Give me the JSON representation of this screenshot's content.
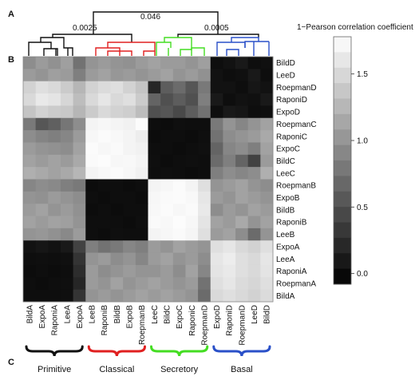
{
  "panel_labels": {
    "a": "A",
    "b": "B",
    "c": "C"
  },
  "dendrogram": {
    "heights": {
      "root": "0.046",
      "left": "0.0025",
      "right": "0.0005"
    },
    "branch_colors": {
      "primitive": "#111111",
      "classical": "#e02020",
      "secretory": "#44dd22",
      "basal": "#2a50c8"
    }
  },
  "colorbar": {
    "title": "1−Pearson correlation coefficient",
    "ticks": [
      "1.5",
      "1.0",
      "0.5",
      "0.0"
    ],
    "tick_values": [
      1.5,
      1.0,
      0.5,
      0.0
    ],
    "range": [
      -0.08,
      1.78
    ]
  },
  "groups": [
    {
      "label": "Primitive",
      "color": "#111111"
    },
    {
      "label": "Classical",
      "color": "#e02020"
    },
    {
      "label": "Secretory",
      "color": "#44dd22"
    },
    {
      "label": "Basal",
      "color": "#2a50c8"
    }
  ],
  "chart_data": {
    "type": "heatmap",
    "x_labels": [
      "BildA",
      "ExpoA",
      "RaponiA",
      "LeeA",
      "ExpoA",
      "LeeB",
      "RaponiB",
      "BildB",
      "ExpoB",
      "RoepmanB",
      "LeeC",
      "BildC",
      "ExpoC",
      "RaponiC",
      "RoepmanD",
      "ExpoD",
      "RaponiD",
      "RoepmanD",
      "LeeD",
      "BildD"
    ],
    "y_labels": [
      "BildD",
      "LeeD",
      "RoepmanD",
      "RaponiD",
      "ExpoD",
      "RoepmanC",
      "RaponiC",
      "ExpoC",
      "BildC",
      "LeeC",
      "RoepmanB",
      "ExpoB",
      "BildB",
      "RaponiB",
      "LeeB",
      "ExpoA",
      "LeeA",
      "RaponiA",
      "RoepmanA",
      "BildA"
    ],
    "values": [
      [
        0.95,
        1.05,
        0.98,
        1.08,
        0.75,
        1.0,
        1.05,
        1.0,
        0.98,
        1.05,
        1.1,
        1.05,
        1.05,
        1.0,
        1.08,
        0.02,
        0.05,
        0.1,
        0.02,
        0.04
      ],
      [
        1.05,
        1.0,
        1.08,
        1.05,
        0.85,
        1.05,
        1.1,
        1.02,
        1.05,
        1.0,
        1.05,
        1.1,
        1.0,
        1.05,
        0.98,
        0.05,
        0.02,
        0.04,
        0.1,
        0.02
      ],
      [
        1.45,
        1.55,
        1.5,
        1.4,
        1.25,
        1.45,
        1.52,
        1.55,
        1.45,
        1.35,
        0.2,
        0.6,
        0.7,
        0.55,
        0.8,
        0.05,
        0.05,
        0.02,
        0.08,
        0.05
      ],
      [
        1.5,
        1.62,
        1.58,
        1.48,
        1.3,
        1.5,
        1.6,
        1.5,
        1.55,
        1.4,
        0.65,
        0.5,
        0.6,
        0.5,
        0.85,
        0.1,
        0.02,
        0.05,
        0.04,
        0.1
      ],
      [
        1.35,
        1.45,
        1.4,
        1.38,
        1.25,
        1.4,
        1.5,
        1.45,
        1.42,
        1.3,
        0.5,
        0.55,
        0.45,
        0.6,
        0.75,
        0.02,
        0.1,
        0.08,
        0.02,
        0.03
      ],
      [
        0.8,
        0.55,
        0.62,
        0.78,
        0.95,
        1.7,
        1.72,
        1.7,
        1.68,
        1.75,
        0.02,
        0.01,
        0.03,
        0.02,
        0.02,
        0.8,
        1.0,
        0.9,
        1.0,
        1.1
      ],
      [
        0.95,
        0.88,
        0.85,
        0.9,
        1.05,
        1.72,
        1.75,
        1.73,
        1.7,
        1.65,
        0.01,
        0.02,
        0.02,
        0.01,
        0.03,
        0.75,
        0.95,
        1.0,
        1.05,
        1.15
      ],
      [
        1.05,
        1.0,
        0.98,
        0.95,
        1.1,
        1.75,
        1.72,
        1.74,
        1.7,
        1.68,
        0.02,
        0.02,
        0.01,
        0.02,
        0.04,
        0.65,
        0.9,
        0.95,
        0.85,
        1.1
      ],
      [
        1.1,
        1.05,
        1.1,
        1.05,
        1.15,
        1.74,
        1.76,
        1.72,
        1.73,
        1.7,
        0.03,
        0.01,
        0.02,
        0.03,
        0.02,
        0.7,
        0.85,
        0.65,
        0.4,
        1.05
      ],
      [
        1.2,
        1.15,
        1.1,
        1.15,
        1.25,
        1.7,
        1.73,
        1.75,
        1.72,
        1.68,
        0.02,
        0.03,
        0.02,
        0.01,
        0.02,
        0.85,
        0.95,
        0.9,
        0.95,
        1.2
      ],
      [
        0.9,
        0.95,
        0.92,
        0.85,
        0.8,
        0.01,
        0.02,
        0.02,
        0.01,
        0.02,
        1.7,
        1.72,
        1.75,
        1.7,
        1.55,
        1.0,
        1.05,
        1.1,
        1.0,
        0.95
      ],
      [
        1.0,
        0.98,
        1.05,
        1.0,
        0.95,
        0.02,
        0.01,
        0.02,
        0.02,
        0.01,
        1.72,
        1.74,
        1.75,
        1.73,
        1.6,
        1.05,
        1.0,
        1.1,
        1.05,
        1.0
      ],
      [
        1.05,
        1.1,
        1.0,
        1.05,
        0.98,
        0.01,
        0.02,
        0.01,
        0.02,
        0.02,
        1.73,
        1.75,
        1.72,
        1.74,
        1.62,
        0.95,
        1.05,
        1.0,
        1.1,
        1.05
      ],
      [
        1.1,
        1.05,
        1.1,
        1.08,
        1.0,
        0.02,
        0.02,
        0.02,
        0.01,
        0.03,
        1.74,
        1.73,
        1.76,
        1.72,
        1.58,
        1.1,
        1.05,
        1.15,
        1.0,
        1.1
      ],
      [
        1.0,
        1.02,
        0.98,
        0.92,
        1.05,
        0.02,
        0.01,
        0.03,
        0.02,
        0.02,
        1.7,
        1.72,
        1.74,
        1.71,
        1.55,
        1.05,
        1.1,
        0.95,
        0.7,
        1.0
      ],
      [
        0.05,
        0.08,
        0.05,
        0.1,
        0.4,
        0.85,
        0.75,
        0.8,
        0.9,
        0.85,
        1.05,
        1.0,
        1.1,
        1.05,
        1.0,
        1.55,
        1.6,
        1.5,
        1.45,
        1.55
      ],
      [
        0.02,
        0.03,
        0.02,
        0.04,
        0.3,
        1.0,
        1.05,
        0.95,
        1.0,
        0.9,
        1.05,
        1.1,
        1.0,
        1.05,
        0.95,
        1.6,
        1.65,
        1.55,
        1.5,
        1.6
      ],
      [
        0.01,
        0.02,
        0.01,
        0.02,
        0.25,
        1.05,
        0.95,
        1.0,
        1.05,
        1.0,
        1.0,
        1.05,
        0.95,
        1.1,
        0.9,
        1.58,
        1.62,
        1.55,
        1.5,
        1.58
      ],
      [
        0.02,
        0.01,
        0.02,
        0.03,
        0.2,
        1.05,
        1.0,
        1.1,
        1.0,
        1.05,
        1.1,
        1.05,
        1.0,
        1.05,
        0.75,
        1.55,
        1.6,
        1.52,
        1.48,
        1.55
      ],
      [
        0.02,
        0.02,
        0.02,
        0.03,
        0.3,
        1.0,
        1.05,
        1.0,
        1.05,
        1.1,
        1.05,
        1.1,
        1.05,
        1.0,
        0.7,
        1.5,
        1.55,
        1.5,
        1.45,
        1.52
      ]
    ]
  }
}
